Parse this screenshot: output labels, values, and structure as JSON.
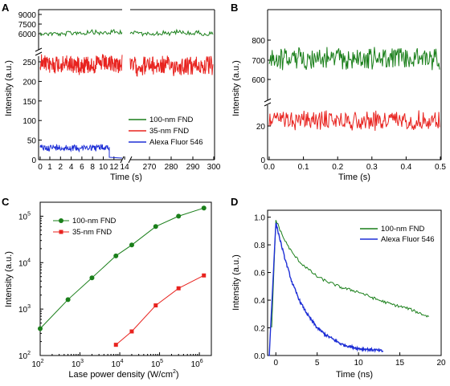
{
  "colors": {
    "green": "#1a7f1a",
    "red": "#e8231f",
    "blue": "#1e2fd6"
  },
  "panels": {
    "A": {
      "label": "A",
      "xlabel": "Time (s)",
      "ylabel": "Intensity (a.u.)",
      "xticks_left": [
        "0",
        "1",
        "2",
        "4",
        "6",
        "8",
        "10",
        "12",
        "14"
      ],
      "xticks_right": [
        "270",
        "280",
        "290",
        "300"
      ],
      "yticks_top": [
        "9000",
        "7500",
        "6000"
      ],
      "yticks_bottom": [
        "0",
        "50",
        "100",
        "150",
        "200",
        "250"
      ]
    },
    "B": {
      "label": "B",
      "xlabel": "Time (s)",
      "ylabel": "Intensity (a.u.)",
      "xticks": [
        "0.0",
        "0.1",
        "0.2",
        "0.3",
        "0.4",
        "0.5"
      ],
      "yticks_top": [
        "800",
        "700",
        "600"
      ],
      "yticks_bottom": [
        "0",
        "20"
      ]
    },
    "C": {
      "label": "C",
      "xlabel": "Lase power density (W/cm",
      "xlabel_sup": "2",
      "xlabel_tail": ")",
      "ylabel": "Intensity (a.u.)",
      "xticks": [
        "10",
        "10",
        "10",
        "10",
        "10"
      ],
      "xexp": [
        "2",
        "3",
        "4",
        "5",
        "6"
      ],
      "yticks": [
        "10",
        "10",
        "10",
        "10"
      ],
      "yexp": [
        "2",
        "3",
        "4",
        "5"
      ]
    },
    "D": {
      "label": "D",
      "xlabel": "Time (ns)",
      "ylabel": "Intensity (a.u.)",
      "xticks": [
        "0",
        "5",
        "10",
        "15",
        "20"
      ],
      "yticks": [
        "0.0",
        "0.2",
        "0.4",
        "0.6",
        "0.8",
        "1.0"
      ]
    }
  },
  "chart_data": [
    {
      "panel": "A",
      "type": "line",
      "xlim": [
        0,
        300
      ],
      "axis_break_x": [
        14,
        265
      ],
      "axis_break_y": [
        300,
        6000
      ],
      "series": [
        {
          "name": "100-nm FND",
          "x_range": [
            0,
            300
          ],
          "mean": 7000
        },
        {
          "name": "35-nm FND",
          "x_range": [
            0,
            300
          ],
          "mean": 245
        },
        {
          "name": "Alexa Fluor 546",
          "x_range": [
            0,
            14
          ],
          "mean": 30
        }
      ]
    },
    {
      "panel": "B",
      "type": "line",
      "xlim": [
        0,
        0.5
      ],
      "axis_break_y": [
        40,
        580
      ],
      "series": [
        {
          "name": "100-nm FND",
          "mean": 690
        },
        {
          "name": "35-nm FND",
          "mean": 25
        }
      ]
    },
    {
      "panel": "C",
      "type": "line",
      "xscale": "log",
      "yscale": "log",
      "xlim": [
        100,
        2000000
      ],
      "ylim": [
        100,
        200000
      ],
      "series": [
        {
          "name": "100-nm FND",
          "x": [
            100,
            500,
            2000,
            8000,
            20000,
            80000,
            300000,
            1300000
          ],
          "y": [
            380,
            1600,
            4700,
            14000,
            24000,
            60000,
            100000,
            150000
          ]
        },
        {
          "name": "35-nm FND",
          "x": [
            8000,
            20000,
            80000,
            300000,
            1300000
          ],
          "y": [
            170,
            330,
            1200,
            2800,
            5300
          ]
        }
      ]
    },
    {
      "panel": "D",
      "type": "line",
      "xlim": [
        -1,
        20
      ],
      "ylim": [
        0,
        1.05
      ],
      "series": [
        {
          "name": "100-nm FND",
          "x": [
            -0.5,
            0,
            1,
            2,
            3,
            4,
            5,
            6,
            8,
            10,
            12,
            14,
            16,
            18.5
          ],
          "y": [
            0.2,
            0.98,
            0.84,
            0.74,
            0.67,
            0.62,
            0.57,
            0.54,
            0.49,
            0.46,
            0.41,
            0.37,
            0.34,
            0.28
          ]
        },
        {
          "name": "Alexa Fluor 546",
          "x": [
            -0.8,
            -0.3,
            0,
            1,
            2,
            3,
            4,
            5,
            6,
            8,
            10,
            12,
            13
          ],
          "y": [
            0.0,
            0.6,
            0.96,
            0.72,
            0.52,
            0.38,
            0.28,
            0.2,
            0.15,
            0.08,
            0.05,
            0.04,
            0.03
          ]
        }
      ]
    }
  ]
}
